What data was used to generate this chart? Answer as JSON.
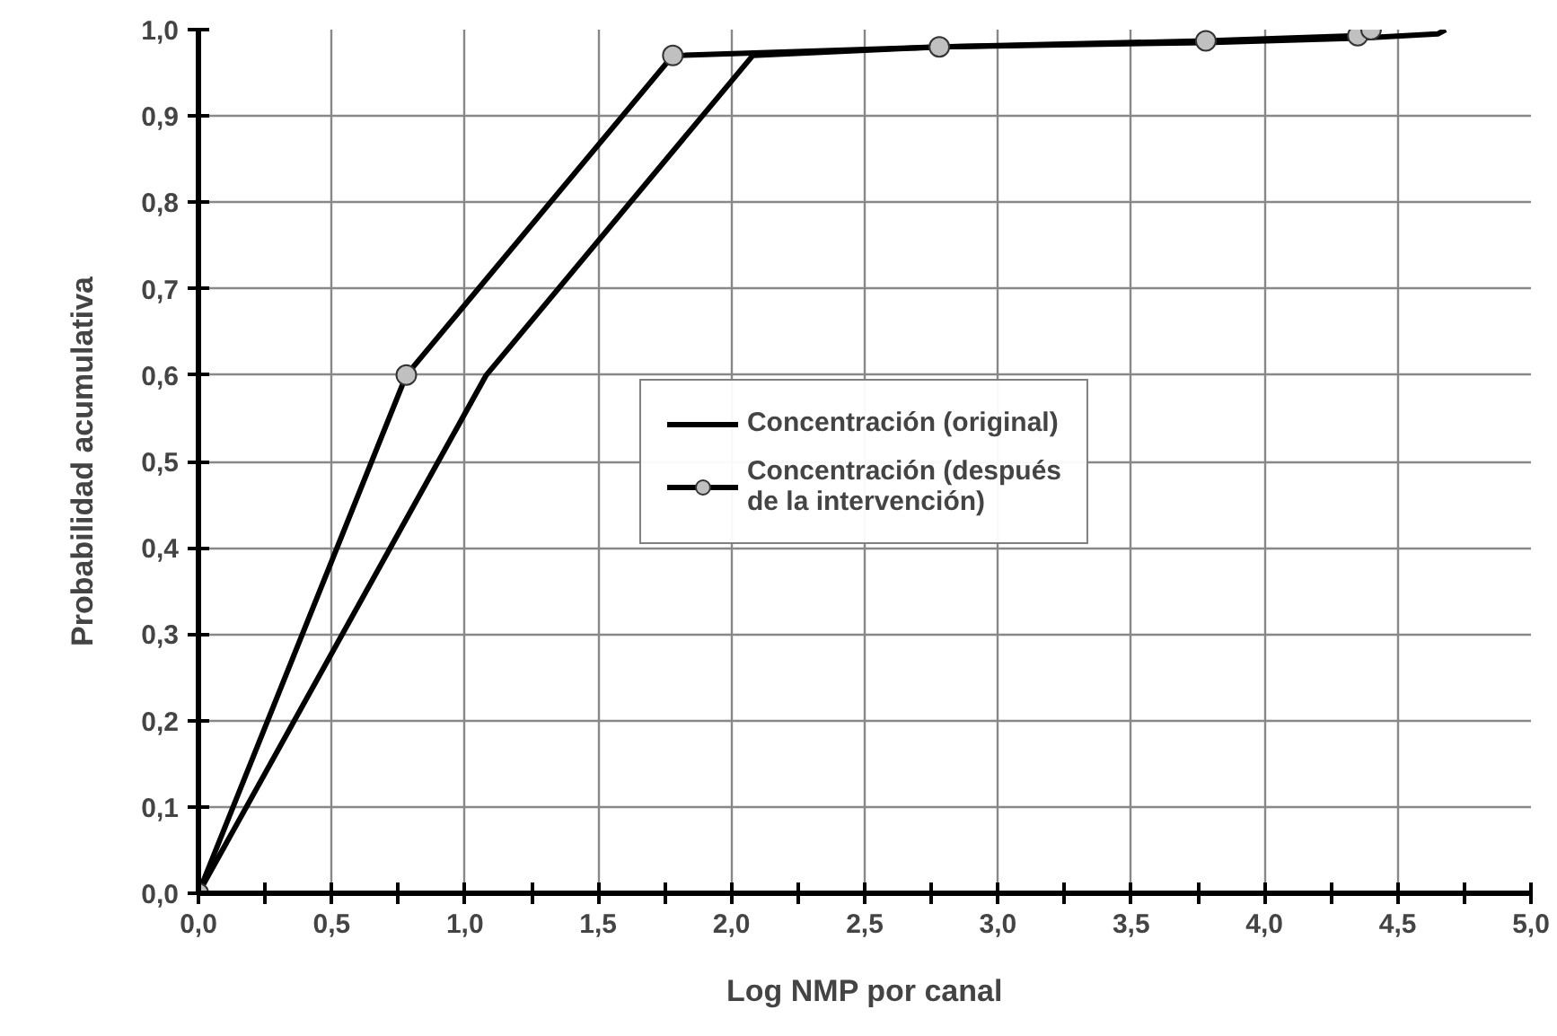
{
  "chart_data": {
    "type": "line",
    "xlabel": "Log NMP por canal",
    "ylabel": "Probabilidad acumulativa",
    "xlim": [
      0,
      5
    ],
    "ylim": [
      0,
      1
    ],
    "xticks": [
      {
        "value": 0,
        "label": "0,0"
      },
      {
        "value": 0.25,
        "label": null
      },
      {
        "value": 0.5,
        "label": "0,5"
      },
      {
        "value": 0.75,
        "label": null
      },
      {
        "value": 1,
        "label": "1,0"
      },
      {
        "value": 1.25,
        "label": null
      },
      {
        "value": 1.5,
        "label": "1,5"
      },
      {
        "value": 1.75,
        "label": null
      },
      {
        "value": 2,
        "label": "2,0"
      },
      {
        "value": 2.25,
        "label": null
      },
      {
        "value": 2.5,
        "label": "2,5"
      },
      {
        "value": 2.75,
        "label": null
      },
      {
        "value": 3,
        "label": "3,0"
      },
      {
        "value": 3.25,
        "label": null
      },
      {
        "value": 3.5,
        "label": "3,5"
      },
      {
        "value": 3.75,
        "label": null
      },
      {
        "value": 4,
        "label": "4,0"
      },
      {
        "value": 4.25,
        "label": null
      },
      {
        "value": 4.5,
        "label": "4,5"
      },
      {
        "value": 4.75,
        "label": null
      },
      {
        "value": 5,
        "label": "5,0"
      }
    ],
    "yticks": [
      {
        "value": 0,
        "label": "0,0"
      },
      {
        "value": 0.1,
        "label": "0,1"
      },
      {
        "value": 0.2,
        "label": "0,2"
      },
      {
        "value": 0.3,
        "label": "0,3"
      },
      {
        "value": 0.4,
        "label": "0,4"
      },
      {
        "value": 0.5,
        "label": "0,5"
      },
      {
        "value": 0.6,
        "label": "0,6"
      },
      {
        "value": 0.7,
        "label": "0,7"
      },
      {
        "value": 0.8,
        "label": "0,8"
      },
      {
        "value": 0.9,
        "label": "0,9"
      },
      {
        "value": 1,
        "label": "1,0"
      }
    ],
    "grid": true,
    "legend": "center",
    "line_style": "solid",
    "series": [
      {
        "name": "Concentración (original)",
        "color": "#000000",
        "marker": "none",
        "x": [
          0,
          1.08,
          2.08,
          2.78,
          3.78,
          4.35,
          4.65,
          4.68
        ],
        "values": [
          0,
          0.6,
          0.97,
          0.98,
          0.985,
          0.99,
          0.995,
          1.0
        ]
      },
      {
        "name": "Concentración (después\nde la intervención)",
        "color": "#000000",
        "marker": "circle",
        "x": [
          0,
          0.78,
          1.78,
          2.78,
          3.78,
          4.35,
          4.4
        ],
        "values": [
          0,
          0.6,
          0.97,
          0.98,
          0.987,
          0.993,
          1.0
        ]
      }
    ]
  }
}
